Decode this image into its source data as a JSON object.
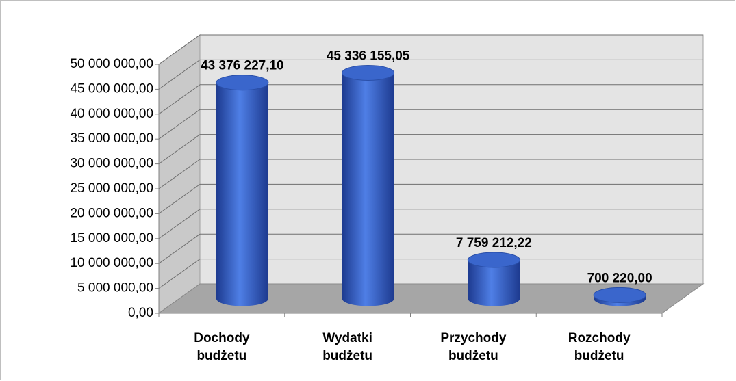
{
  "chart_data": {
    "type": "bar3d",
    "categories": [
      "Dochody budżetu",
      "Wydatki budżetu",
      "Przychody budżetu",
      "Rozchody budżetu"
    ],
    "values": [
      43376227.1,
      45336155.05,
      7759212.22,
      700220.0
    ],
    "value_labels": [
      "43 376 227,10",
      "45 336 155,05",
      "7 759 212,22",
      "700 220,00"
    ],
    "color": "#3a66cc",
    "ylim": [
      0,
      50000000
    ],
    "yticks": [
      {
        "value": 0,
        "label": "0,00"
      },
      {
        "value": 5000000,
        "label": "5 000 000,00"
      },
      {
        "value": 10000000,
        "label": "10 000 000,00"
      },
      {
        "value": 15000000,
        "label": "15 000 000,00"
      },
      {
        "value": 20000000,
        "label": "20 000 000,00"
      },
      {
        "value": 25000000,
        "label": "25 000 000,00"
      },
      {
        "value": 30000000,
        "label": "30 000 000,00"
      },
      {
        "value": 35000000,
        "label": "35 000 000,00"
      },
      {
        "value": 40000000,
        "label": "40 000 000,00"
      },
      {
        "value": 45000000,
        "label": "45 000 000,00"
      },
      {
        "value": 50000000,
        "label": "50 000 000,00"
      }
    ],
    "grid": true
  }
}
